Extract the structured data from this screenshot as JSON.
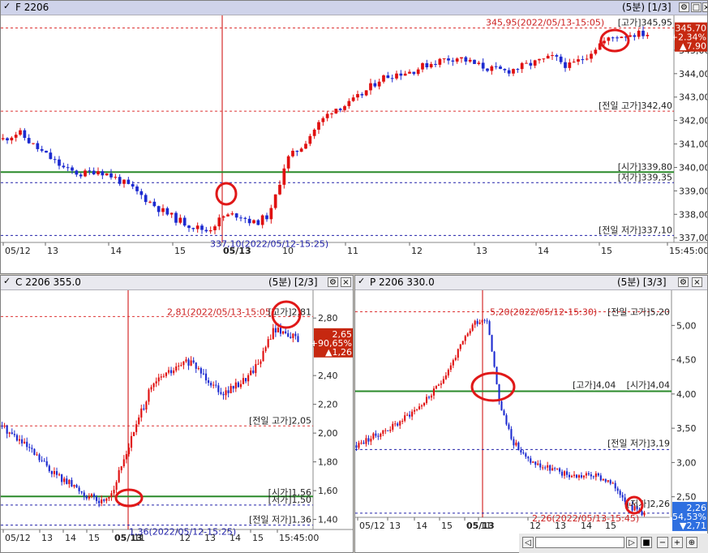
{
  "panes": [
    {
      "id": "F",
      "title": "F 2206",
      "period": "(5분) [1/3]",
      "price_box": {
        "price": "345.70",
        "pct": "+2.34%",
        "change": "▲7.90",
        "color": "#c62810"
      },
      "y_ticks": [
        "345,00",
        "344,00",
        "343,00",
        "342,00",
        "341,00",
        "340,00",
        "339,00",
        "338,00",
        "337,00"
      ],
      "x_labels": [
        "05/12",
        "13",
        "14",
        "15",
        "05/13",
        "10",
        "11",
        "12",
        "13",
        "14",
        "15",
        "15:45:00"
      ],
      "level_labels": {
        "high_note": "345,95(2022/05/13-15:05)",
        "high_tag": "[고가]345,95",
        "prev_high": "[전일 고가]342,40",
        "open": "[시가]339,80",
        "low": "[저가]339,35",
        "prev_low": "[전일 저가]337,10",
        "low_note": "337,10(2022/05/12-15:25)"
      }
    },
    {
      "id": "C",
      "title": "C 2206 355.0",
      "period": "(5분) [2/3]",
      "price_box": {
        "price": "2,65",
        "pct": "+90,65%",
        "change": "▲1,26",
        "color": "#c62810"
      },
      "y_ticks": [
        "2,80",
        "2,60",
        "2,40",
        "2,20",
        "2,00",
        "1,80",
        "1,60",
        "1,40"
      ],
      "x_labels": [
        "05/12",
        "13",
        "14",
        "15",
        "05/13",
        "11",
        "12",
        "13",
        "14",
        "15",
        "15:45:00"
      ],
      "level_labels": {
        "high_note": "2,81(2022/05/13-15:05)",
        "high_tag": "[고가]2,81",
        "prev_high": "[전일 고가]2,05",
        "open": "[시가]1,56",
        "low": "[저가]1,50",
        "prev_low": "[전일 저가]1,36",
        "low_note": "1,36(2022/05/12-15:25)"
      }
    },
    {
      "id": "P",
      "title": "P 2206 330.0",
      "period": "(5분) [3/3]",
      "price_box": {
        "price": "2,26",
        "pct": "-54,53%",
        "change": "▼2,71",
        "color": "#2e6fe0"
      },
      "y_ticks": [
        "5,00",
        "4,50",
        "4,00",
        "3,50",
        "3,00",
        "2,50"
      ],
      "x_labels": [
        "05/12",
        "13",
        "14",
        "15",
        "05/13",
        "11",
        "12",
        "13",
        "14",
        "15"
      ],
      "level_labels": {
        "high_note": "5,20(2022/05/12-15:30)",
        "prev_high": "[전일 고가]5,20",
        "high_tag": "[고가]4,04",
        "open": "[시가]4,04",
        "prev_low": "[전일 저가]3,19",
        "low_tag": "[저가]2,26",
        "low_note": "2,26(2022/05/13-15:45)"
      }
    }
  ],
  "chart_data": [
    {
      "type": "candlestick",
      "title": "F 2206",
      "interval": "5분",
      "ylim": [
        336.8,
        346.0
      ],
      "y_scale_labels": [
        "05/12",
        "13",
        "14",
        "15",
        "05/13",
        "10",
        "11",
        "12",
        "13",
        "14",
        "15"
      ],
      "levels": {
        "high": 345.95,
        "prev_high": 342.4,
        "open": 339.8,
        "low": 339.35,
        "prev_low": 337.1,
        "last": 345.7
      },
      "close_path": [
        341.2,
        341.5,
        340.9,
        340.4,
        339.9,
        339.7,
        339.9,
        339.6,
        339.2,
        338.7,
        338.2,
        337.8,
        337.5,
        337.3,
        337.9,
        338.0,
        337.6,
        338.0,
        340.3,
        340.9,
        341.8,
        342.5,
        342.7,
        343.2,
        343.8,
        344.0,
        344.1,
        344.4,
        344.6,
        344.7,
        344.4,
        344.2,
        344.1,
        344.3,
        344.5,
        344.7,
        344.3,
        344.7,
        345.3,
        345.6,
        345.7,
        345.7
      ]
    },
    {
      "type": "candlestick",
      "title": "C 2206 355.0",
      "interval": "5분",
      "ylim": [
        1.33,
        2.88
      ],
      "levels": {
        "high": 2.81,
        "prev_high": 2.05,
        "open": 1.56,
        "low": 1.5,
        "prev_low": 1.36,
        "last": 2.65
      },
      "close_path": [
        2.05,
        1.98,
        1.9,
        1.82,
        1.74,
        1.67,
        1.62,
        1.56,
        1.52,
        1.6,
        1.85,
        2.08,
        2.3,
        2.4,
        2.44,
        2.5,
        2.44,
        2.35,
        2.28,
        2.33,
        2.4,
        2.52,
        2.72,
        2.7,
        2.65
      ]
    },
    {
      "type": "candlestick",
      "title": "P 2206 330.0",
      "interval": "5분",
      "ylim": [
        2.2,
        5.3
      ],
      "levels": {
        "prev_high": 5.2,
        "high": 4.04,
        "open": 4.04,
        "prev_low": 3.19,
        "low": 2.26,
        "last": 2.26
      },
      "close_path": [
        3.25,
        3.35,
        3.45,
        3.55,
        3.7,
        3.85,
        4.05,
        4.35,
        4.7,
        5.05,
        5.1,
        3.8,
        3.3,
        3.05,
        2.95,
        2.9,
        2.82,
        2.8,
        2.82,
        2.75,
        2.6,
        2.35,
        2.26
      ]
    }
  ]
}
